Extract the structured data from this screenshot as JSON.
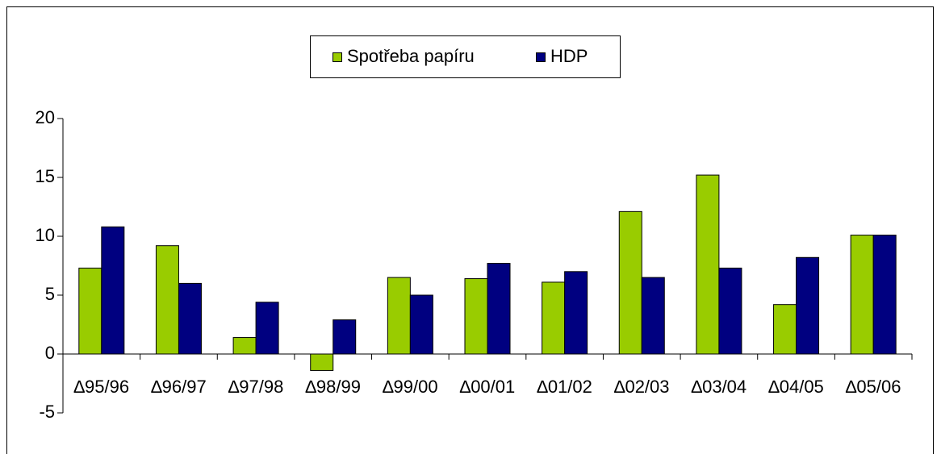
{
  "chart_data": {
    "type": "bar",
    "categories": [
      "∆95/96",
      "∆96/97",
      "∆97/98",
      "∆98/99",
      "∆99/00",
      "∆00/01",
      "∆01/02",
      "∆02/03",
      "∆03/04",
      "∆04/05",
      "∆05/06"
    ],
    "series": [
      {
        "name": "Spotřeba papíru",
        "color": "#99cc00",
        "values": [
          7.3,
          9.2,
          1.4,
          -1.4,
          6.5,
          6.4,
          6.1,
          12.1,
          15.2,
          4.2,
          10.1
        ]
      },
      {
        "name": "HDP",
        "color": "#000080",
        "values": [
          10.8,
          6.0,
          4.4,
          2.9,
          5.0,
          7.7,
          7.0,
          6.5,
          7.3,
          8.2,
          10.1
        ]
      }
    ],
    "ylim": [
      -5,
      20
    ],
    "yticks": [
      -5,
      0,
      5,
      10,
      15,
      20
    ],
    "legend": "top"
  }
}
